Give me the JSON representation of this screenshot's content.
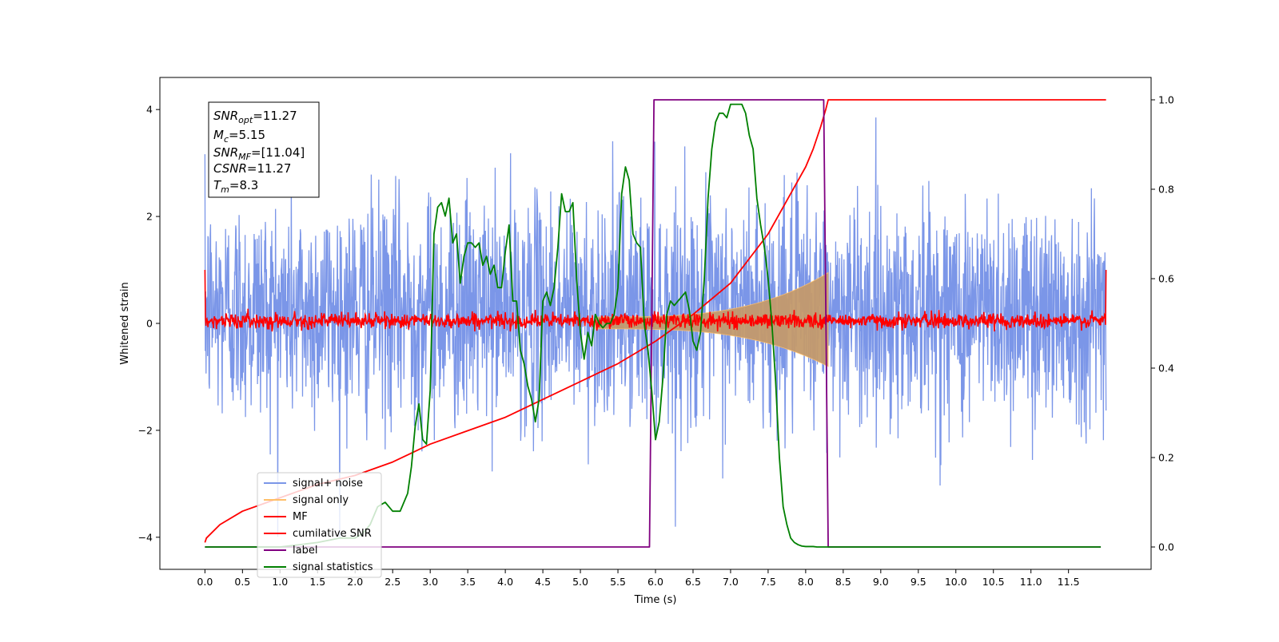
{
  "chart_data": {
    "type": "line",
    "title": "",
    "xlabel": "Time (s)",
    "ylabel": "Whitened strain",
    "y2label": "",
    "xlim": [
      -0.6,
      12.6
    ],
    "ylim": [
      -4.6,
      4.6
    ],
    "y2lim": [
      -0.05,
      1.05
    ],
    "xticks": [
      0.0,
      0.5,
      1.0,
      1.5,
      2.0,
      2.5,
      3.0,
      3.5,
      4.0,
      4.5,
      5.0,
      5.5,
      6.0,
      6.5,
      7.0,
      7.5,
      8.0,
      8.5,
      9.0,
      9.5,
      10.0,
      10.5,
      11.0,
      11.5
    ],
    "xtick_labels": [
      "0.0",
      "0.5",
      "1.0",
      "1.5",
      "2.0",
      "2.5",
      "3.0",
      "3.5",
      "4.0",
      "4.5",
      "5.0",
      "5.5",
      "6.0",
      "6.5",
      "7.0",
      "7.5",
      "8.0",
      "8.5",
      "9.0",
      "9.5",
      "10.0",
      "10.5",
      "11.0",
      "11.5"
    ],
    "yticks": [
      -4,
      -2,
      0,
      2,
      4
    ],
    "ytick_labels": [
      "−4",
      "−2",
      "0",
      "2",
      "4"
    ],
    "y2ticks": [
      0.0,
      0.2,
      0.4,
      0.6,
      0.8,
      1.0
    ],
    "y2tick_labels": [
      "0.0",
      "0.2",
      "0.4",
      "0.6",
      "0.8",
      "1.0"
    ],
    "grid": false,
    "legend_position": "lower-left",
    "info_box": {
      "lines": [
        {
          "sym": "SNR",
          "sub": "opt",
          "value": "=11.27"
        },
        {
          "sym": "M",
          "sub": "c",
          "value": "=5.15"
        },
        {
          "sym": "SNR",
          "sub": "MF",
          "value": "=[11.04]"
        },
        {
          "sym": "CSNR",
          "sub": "",
          "value": "=11.27"
        },
        {
          "sym": "T",
          "sub": "m",
          "value": "=8.3"
        }
      ]
    },
    "series": [
      {
        "name": "signal+ noise",
        "axis": "left",
        "color": "#7b96e8",
        "style": "noise",
        "x_range": [
          0.0,
          12.0
        ],
        "envelope": [
          -4.0,
          4.15
        ],
        "typical_band": [
          -1.8,
          2.4
        ]
      },
      {
        "name": "signal only",
        "axis": "left",
        "color": "#ffbf69",
        "style": "chirp",
        "x_range": [
          5.2,
          8.3
        ],
        "peak_amplitude": 0.95
      },
      {
        "name": "MF",
        "axis": "left",
        "color": "#ff0000",
        "style": "noise",
        "x_range": [
          0.0,
          12.0
        ],
        "envelope": [
          -0.15,
          0.3
        ],
        "edge_values": [
          1.0,
          1.0
        ]
      },
      {
        "name": "cumilative SNR",
        "axis": "right",
        "color": "#ff0000",
        "style": "line",
        "x": [
          0.0,
          0.02,
          0.2,
          0.5,
          1.0,
          1.5,
          2.0,
          2.5,
          3.0,
          3.5,
          4.0,
          4.5,
          5.0,
          5.5,
          6.0,
          6.5,
          7.0,
          7.5,
          7.8,
          8.0,
          8.1,
          8.2,
          8.27,
          8.3,
          12.0
        ],
        "values": [
          0.01,
          0.02,
          0.05,
          0.08,
          0.11,
          0.14,
          0.16,
          0.19,
          0.23,
          0.26,
          0.29,
          0.33,
          0.37,
          0.41,
          0.46,
          0.52,
          0.59,
          0.7,
          0.79,
          0.85,
          0.89,
          0.94,
          0.98,
          1.0,
          1.0
        ]
      },
      {
        "name": "label",
        "axis": "right",
        "color": "#800080",
        "style": "line",
        "x": [
          0.0,
          5.92,
          5.98,
          8.24,
          8.3,
          11.93
        ],
        "values": [
          0.0,
          0.0,
          1.0,
          1.0,
          0.0,
          0.0
        ]
      },
      {
        "name": "signal statistics",
        "axis": "right",
        "color": "#008000",
        "style": "line",
        "x": [
          0.0,
          0.5,
          1.0,
          1.5,
          1.8,
          2.0,
          2.1,
          2.2,
          2.3,
          2.4,
          2.5,
          2.6,
          2.7,
          2.75,
          2.8,
          2.85,
          2.9,
          2.95,
          3.0,
          3.05,
          3.1,
          3.15,
          3.2,
          3.25,
          3.3,
          3.35,
          3.4,
          3.45,
          3.5,
          3.55,
          3.6,
          3.65,
          3.7,
          3.75,
          3.8,
          3.85,
          3.9,
          3.95,
          4.0,
          4.05,
          4.1,
          4.15,
          4.2,
          4.25,
          4.3,
          4.35,
          4.4,
          4.45,
          4.5,
          4.55,
          4.6,
          4.65,
          4.7,
          4.75,
          4.8,
          4.85,
          4.9,
          4.95,
          5.0,
          5.05,
          5.1,
          5.15,
          5.2,
          5.25,
          5.3,
          5.35,
          5.4,
          5.45,
          5.5,
          5.55,
          5.6,
          5.65,
          5.7,
          5.75,
          5.8,
          5.85,
          5.9,
          5.95,
          6.0,
          6.05,
          6.1,
          6.15,
          6.2,
          6.25,
          6.3,
          6.35,
          6.4,
          6.45,
          6.5,
          6.55,
          6.6,
          6.65,
          6.7,
          6.75,
          6.8,
          6.85,
          6.9,
          6.95,
          7.0,
          7.05,
          7.1,
          7.15,
          7.2,
          7.25,
          7.3,
          7.35,
          7.4,
          7.45,
          7.5,
          7.55,
          7.6,
          7.65,
          7.7,
          7.75,
          7.8,
          7.85,
          7.9,
          7.95,
          8.0,
          8.05,
          8.1,
          8.15,
          8.2,
          8.25,
          8.3,
          8.35,
          8.4,
          8.45,
          8.5,
          8.6,
          8.7,
          8.8,
          9.0,
          10.0,
          11.0,
          11.93
        ],
        "values": [
          0.0,
          0.0,
          0.0,
          0.01,
          0.02,
          0.02,
          0.03,
          0.05,
          0.09,
          0.1,
          0.08,
          0.08,
          0.12,
          0.18,
          0.27,
          0.32,
          0.24,
          0.23,
          0.35,
          0.7,
          0.76,
          0.77,
          0.74,
          0.78,
          0.68,
          0.7,
          0.59,
          0.65,
          0.68,
          0.68,
          0.67,
          0.68,
          0.63,
          0.65,
          0.61,
          0.63,
          0.58,
          0.58,
          0.66,
          0.72,
          0.55,
          0.55,
          0.44,
          0.41,
          0.36,
          0.33,
          0.28,
          0.33,
          0.55,
          0.57,
          0.54,
          0.58,
          0.67,
          0.79,
          0.75,
          0.75,
          0.77,
          0.6,
          0.48,
          0.42,
          0.48,
          0.45,
          0.52,
          0.5,
          0.49,
          0.5,
          0.5,
          0.52,
          0.58,
          0.79,
          0.85,
          0.82,
          0.7,
          0.68,
          0.67,
          0.5,
          0.44,
          0.35,
          0.24,
          0.28,
          0.38,
          0.52,
          0.55,
          0.54,
          0.55,
          0.56,
          0.57,
          0.53,
          0.46,
          0.44,
          0.48,
          0.6,
          0.78,
          0.89,
          0.95,
          0.97,
          0.97,
          0.96,
          0.99,
          0.99,
          0.99,
          0.99,
          0.97,
          0.92,
          0.89,
          0.78,
          0.72,
          0.67,
          0.6,
          0.5,
          0.37,
          0.2,
          0.09,
          0.05,
          0.02,
          0.01,
          0.005,
          0.002,
          0.001,
          0.001,
          0.001,
          0.0,
          0.0,
          0.0,
          0.0,
          0.0,
          0.0,
          0.0,
          0.0,
          0.0,
          0.0,
          0.0,
          0.0,
          0.0,
          0.0,
          0.0
        ]
      }
    ]
  }
}
